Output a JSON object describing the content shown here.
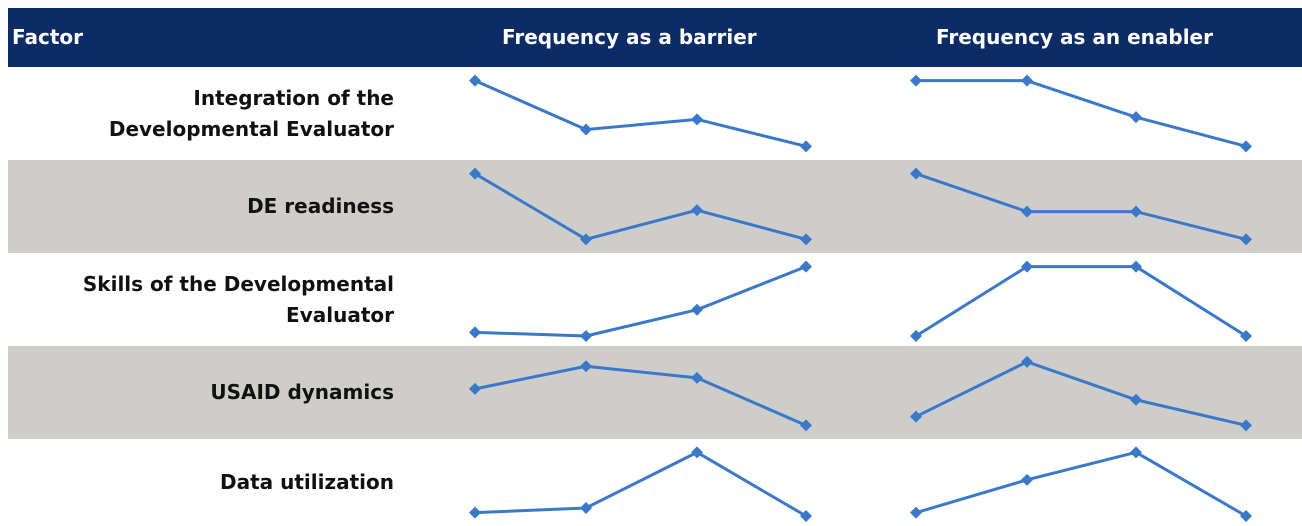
{
  "header": {
    "factor": "Factor",
    "barrier": "Frequency as a barrier",
    "enabler": "Frequency as an enabler"
  },
  "colors": {
    "header_bg": "#0d2c66",
    "header_text": "#ffffff",
    "row_shaded": "#cfcdca",
    "row_plain": "#ffffff",
    "line": "#3a78c9"
  },
  "rows": [
    {
      "factor": "Integration of the Developmental Evaluator",
      "shaded": false
    },
    {
      "factor": "DE readiness",
      "shaded": true
    },
    {
      "factor": "Skills of the Developmental Evaluator",
      "shaded": false
    },
    {
      "factor": "USAID dynamics",
      "shaded": true
    },
    {
      "factor": "Data utilization",
      "shaded": false
    }
  ],
  "chart_data": {
    "type": "line",
    "note_points": 4,
    "barrier": [
      [
        0.95,
        0.28,
        0.42,
        0.05
      ],
      [
        0.95,
        0.05,
        0.45,
        0.05
      ],
      [
        0.05,
        0.0,
        0.36,
        0.95
      ],
      [
        0.55,
        0.86,
        0.7,
        0.05
      ],
      [
        0.05,
        0.12,
        0.95,
        0.0
      ]
    ],
    "enabler": [
      [
        0.95,
        0.95,
        0.45,
        0.05
      ],
      [
        0.95,
        0.43,
        0.43,
        0.05
      ],
      [
        0.0,
        0.95,
        0.95,
        0.0
      ],
      [
        0.17,
        0.92,
        0.4,
        0.05
      ],
      [
        0.05,
        0.54,
        0.95,
        0.0
      ]
    ]
  }
}
